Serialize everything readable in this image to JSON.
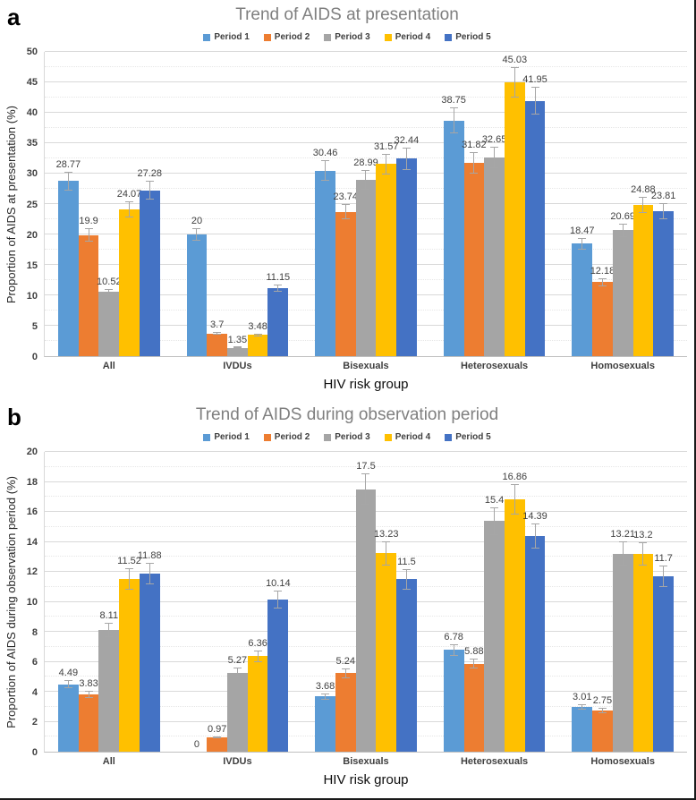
{
  "chart_data": [
    {
      "type": "bar",
      "panel_label": "a",
      "title": "Trend of AIDS at presentation",
      "xlabel": "HIV risk group",
      "ylabel": "Proportion of AIDS at presentation (%)",
      "ylim": [
        0,
        50
      ],
      "ytick_step": 5,
      "ytick_minor": 2.5,
      "grid": true,
      "legend_position": "top",
      "error_bars": true,
      "error_fraction": 0.055,
      "categories": [
        "All",
        "IVDUs",
        "Bisexuals",
        "Heterosexuals",
        "Homosexuals"
      ],
      "series": [
        {
          "name": "Period 1",
          "color": "#5B9BD5",
          "values": [
            28.77,
            20,
            30.46,
            38.75,
            18.47
          ]
        },
        {
          "name": "Period 2",
          "color": "#ED7D31",
          "values": [
            19.9,
            3.7,
            23.74,
            31.82,
            12.18
          ]
        },
        {
          "name": "Period 3",
          "color": "#A5A5A5",
          "values": [
            10.52,
            1.35,
            28.99,
            32.65,
            20.69
          ]
        },
        {
          "name": "Period 4",
          "color": "#FFC000",
          "values": [
            24.07,
            3.48,
            31.57,
            45.03,
            24.88
          ]
        },
        {
          "name": "Period 5",
          "color": "#4472C4",
          "values": [
            27.28,
            11.15,
            32.44,
            41.95,
            23.81
          ]
        }
      ]
    },
    {
      "type": "bar",
      "panel_label": "b",
      "title": "Trend of AIDS during observation period",
      "xlabel": "HIV risk group",
      "ylabel": "Proportion of AIDS during observation period (%)",
      "ylim": [
        0,
        20
      ],
      "ytick_step": 2,
      "ytick_minor": 1,
      "grid": true,
      "legend_position": "top",
      "error_bars": true,
      "error_fraction": 0.06,
      "categories": [
        "All",
        "IVDUs",
        "Bisexuals",
        "Heterosexuals",
        "Homosexuals"
      ],
      "series": [
        {
          "name": "Period 1",
          "color": "#5B9BD5",
          "values": [
            4.49,
            0,
            3.68,
            6.78,
            3.01
          ]
        },
        {
          "name": "Period 2",
          "color": "#ED7D31",
          "values": [
            3.83,
            0.97,
            5.24,
            5.88,
            2.75
          ]
        },
        {
          "name": "Period 3",
          "color": "#A5A5A5",
          "values": [
            8.11,
            5.27,
            17.5,
            15.4,
            13.21
          ]
        },
        {
          "name": "Period 4",
          "color": "#FFC000",
          "values": [
            11.52,
            6.36,
            13.23,
            16.86,
            13.2
          ]
        },
        {
          "name": "Period 5",
          "color": "#4472C4",
          "values": [
            11.88,
            10.14,
            11.5,
            14.39,
            11.7
          ]
        }
      ]
    }
  ]
}
